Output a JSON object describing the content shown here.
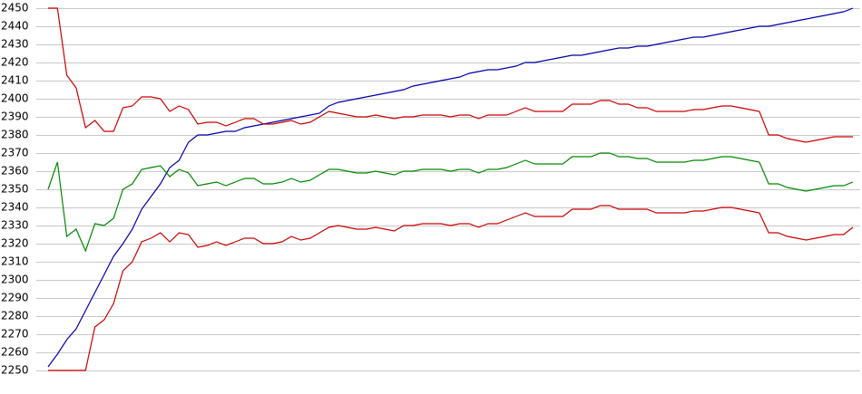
{
  "chart_data": {
    "type": "line",
    "ylim": [
      2250,
      2450
    ],
    "yticks": [
      2250,
      2260,
      2270,
      2280,
      2290,
      2300,
      2310,
      2320,
      2330,
      2340,
      2350,
      2360,
      2370,
      2380,
      2390,
      2400,
      2410,
      2420,
      2430,
      2440,
      2450
    ],
    "grid": true,
    "series": [
      {
        "color": "#0000aa",
        "values": [
          2252,
          2259,
          2267,
          2273,
          2283,
          2293,
          2303,
          2313,
          2320,
          2328,
          2339,
          2346,
          2353,
          2362,
          2366,
          2376,
          2380,
          2380,
          2381,
          2382,
          2382,
          2384,
          2385,
          2386,
          2387,
          2388,
          2389,
          2390,
          2391,
          2392,
          2396,
          2398,
          2399,
          2400,
          2401,
          2402,
          2403,
          2404,
          2405,
          2407,
          2408,
          2409,
          2410,
          2411,
          2412,
          2414,
          2415,
          2416,
          2416,
          2417,
          2418,
          2420,
          2420,
          2421,
          2422,
          2423,
          2424,
          2424,
          2425,
          2426,
          2427,
          2428,
          2428,
          2429,
          2429,
          2430,
          2431,
          2432,
          2433,
          2434,
          2434,
          2435,
          2436,
          2437,
          2438,
          2439,
          2440,
          2440,
          2441,
          2442,
          2443,
          2444,
          2445,
          2446,
          2447,
          2448,
          2450
        ]
      },
      {
        "color": "#cc0000",
        "values": [
          2450,
          2450,
          2413,
          2406,
          2384,
          2388,
          2382,
          2382,
          2395,
          2396,
          2401,
          2401,
          2400,
          2393,
          2396,
          2394,
          2386,
          2387,
          2387,
          2385,
          2387,
          2389,
          2389,
          2386,
          2386,
          2387,
          2388,
          2386,
          2387,
          2390,
          2393,
          2392,
          2391,
          2390,
          2390,
          2391,
          2390,
          2389,
          2390,
          2390,
          2391,
          2391,
          2391,
          2390,
          2391,
          2391,
          2389,
          2391,
          2391,
          2391,
          2393,
          2395,
          2393,
          2393,
          2393,
          2393,
          2397,
          2397,
          2397,
          2399,
          2399,
          2397,
          2397,
          2395,
          2395,
          2393,
          2393,
          2393,
          2393,
          2394,
          2394,
          2395,
          2396,
          2396,
          2395,
          2394,
          2393,
          2380,
          2380,
          2378,
          2377,
          2376,
          2377,
          2378,
          2379,
          2379,
          2379
        ]
      },
      {
        "color": "#008800",
        "values": [
          2350,
          2365,
          2324,
          2328,
          2316,
          2331,
          2330,
          2334,
          2350,
          2353,
          2361,
          2362,
          2363,
          2357,
          2361,
          2359,
          2352,
          2353,
          2354,
          2352,
          2354,
          2356,
          2356,
          2353,
          2353,
          2354,
          2356,
          2354,
          2355,
          2358,
          2361,
          2361,
          2360,
          2359,
          2359,
          2360,
          2359,
          2358,
          2360,
          2360,
          2361,
          2361,
          2361,
          2360,
          2361,
          2361,
          2359,
          2361,
          2361,
          2362,
          2364,
          2366,
          2364,
          2364,
          2364,
          2364,
          2368,
          2368,
          2368,
          2370,
          2370,
          2368,
          2368,
          2367,
          2367,
          2365,
          2365,
          2365,
          2365,
          2366,
          2366,
          2367,
          2368,
          2368,
          2367,
          2366,
          2365,
          2353,
          2353,
          2351,
          2350,
          2349,
          2350,
          2351,
          2352,
          2352,
          2354
        ]
      },
      {
        "color": "#cc0000",
        "values": [
          2250,
          2250,
          2250,
          2250,
          2250,
          2274,
          2278,
          2287,
          2305,
          2310,
          2321,
          2323,
          2326,
          2321,
          2326,
          2325,
          2318,
          2319,
          2321,
          2319,
          2321,
          2323,
          2323,
          2320,
          2320,
          2321,
          2324,
          2322,
          2323,
          2326,
          2329,
          2330,
          2329,
          2328,
          2328,
          2329,
          2328,
          2327,
          2330,
          2330,
          2331,
          2331,
          2331,
          2330,
          2331,
          2331,
          2329,
          2331,
          2331,
          2333,
          2335,
          2337,
          2335,
          2335,
          2335,
          2335,
          2339,
          2339,
          2339,
          2341,
          2341,
          2339,
          2339,
          2339,
          2339,
          2337,
          2337,
          2337,
          2337,
          2338,
          2338,
          2339,
          2340,
          2340,
          2339,
          2338,
          2337,
          2326,
          2326,
          2324,
          2323,
          2322,
          2323,
          2324,
          2325,
          2325,
          2329
        ]
      }
    ]
  }
}
